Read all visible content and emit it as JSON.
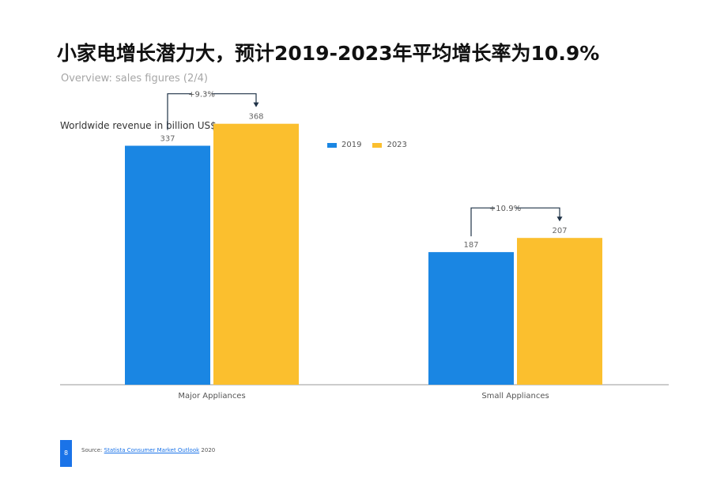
{
  "header": {
    "title": "小家电增长潜力大，预计2019-2023年平均增长率为10.9%",
    "subtitle": "Overview: sales figures (2/4)"
  },
  "chart_data": {
    "type": "bar",
    "title": "Worldwide revenue in billion US$",
    "categories": [
      "Major Appliances",
      "Small Appliances"
    ],
    "series": [
      {
        "name": "2019",
        "values": [
          337,
          187
        ],
        "color": "#1a86e3"
      },
      {
        "name": "2023",
        "values": [
          368,
          207
        ],
        "color": "#fbbf2e"
      }
    ],
    "annotations": [
      "+9.3%",
      "+10.9%"
    ],
    "ylim": [
      0,
      420
    ],
    "grid": false,
    "legend": "top-center"
  },
  "footer": {
    "source_prefix": "Source:",
    "source_link": "Statista Consumer Market Outlook",
    "source_year": "2020",
    "badge": "8"
  }
}
